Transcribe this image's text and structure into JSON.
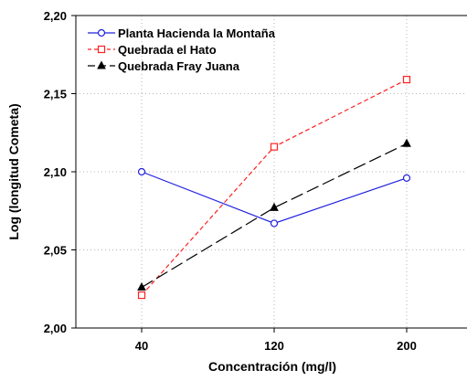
{
  "chart_data": {
    "type": "line",
    "title": "",
    "xlabel": "Concentración (mg/l)",
    "ylabel": "Log (longitud Cometa)",
    "categories": [
      "40",
      "120",
      "200"
    ],
    "ylim": [
      2.0,
      2.2
    ],
    "yticks": [
      "2,00",
      "2,05",
      "2,10",
      "2,15",
      "2,20"
    ],
    "grid": true,
    "legend_position": "top-left",
    "series": [
      {
        "name": "Planta Hacienda la Montaña",
        "values": [
          2.1,
          2.067,
          2.096
        ],
        "color": "#2020e0",
        "line_style": "solid",
        "marker": "circle"
      },
      {
        "name": "Quebrada el Hato",
        "values": [
          2.021,
          2.116,
          2.159
        ],
        "color": "#ff2020",
        "line_style": "dashed",
        "marker": "square"
      },
      {
        "name": "Quebrada Fray Juana",
        "values": [
          2.026,
          2.077,
          2.118
        ],
        "color": "#000000",
        "line_style": "long-dash",
        "marker": "triangle"
      }
    ]
  }
}
